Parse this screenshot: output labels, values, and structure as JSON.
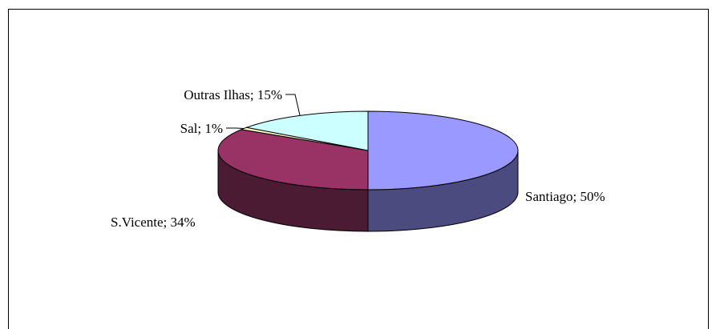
{
  "chart_data": {
    "type": "pie",
    "style": "3d",
    "slices": [
      {
        "label": "Santiago",
        "value": 50,
        "text": "Santiago; 50%",
        "color": "#9999ff",
        "side_color": "#4b4b80"
      },
      {
        "label": "S.Vicente",
        "value": 34,
        "text": "S.Vicente; 34%",
        "color": "#993366",
        "side_color": "#4b1a33"
      },
      {
        "label": "Sal",
        "value": 1,
        "text": "Sal; 1%",
        "color": "#ffffcc",
        "side_color": "#808066"
      },
      {
        "label": "Outras Ilhas",
        "value": 15,
        "text": "Outras Ilhas; 15%",
        "color": "#ccffff",
        "side_color": "#668080"
      }
    ],
    "legend": "none",
    "start": "12 o'clock, clockwise"
  }
}
